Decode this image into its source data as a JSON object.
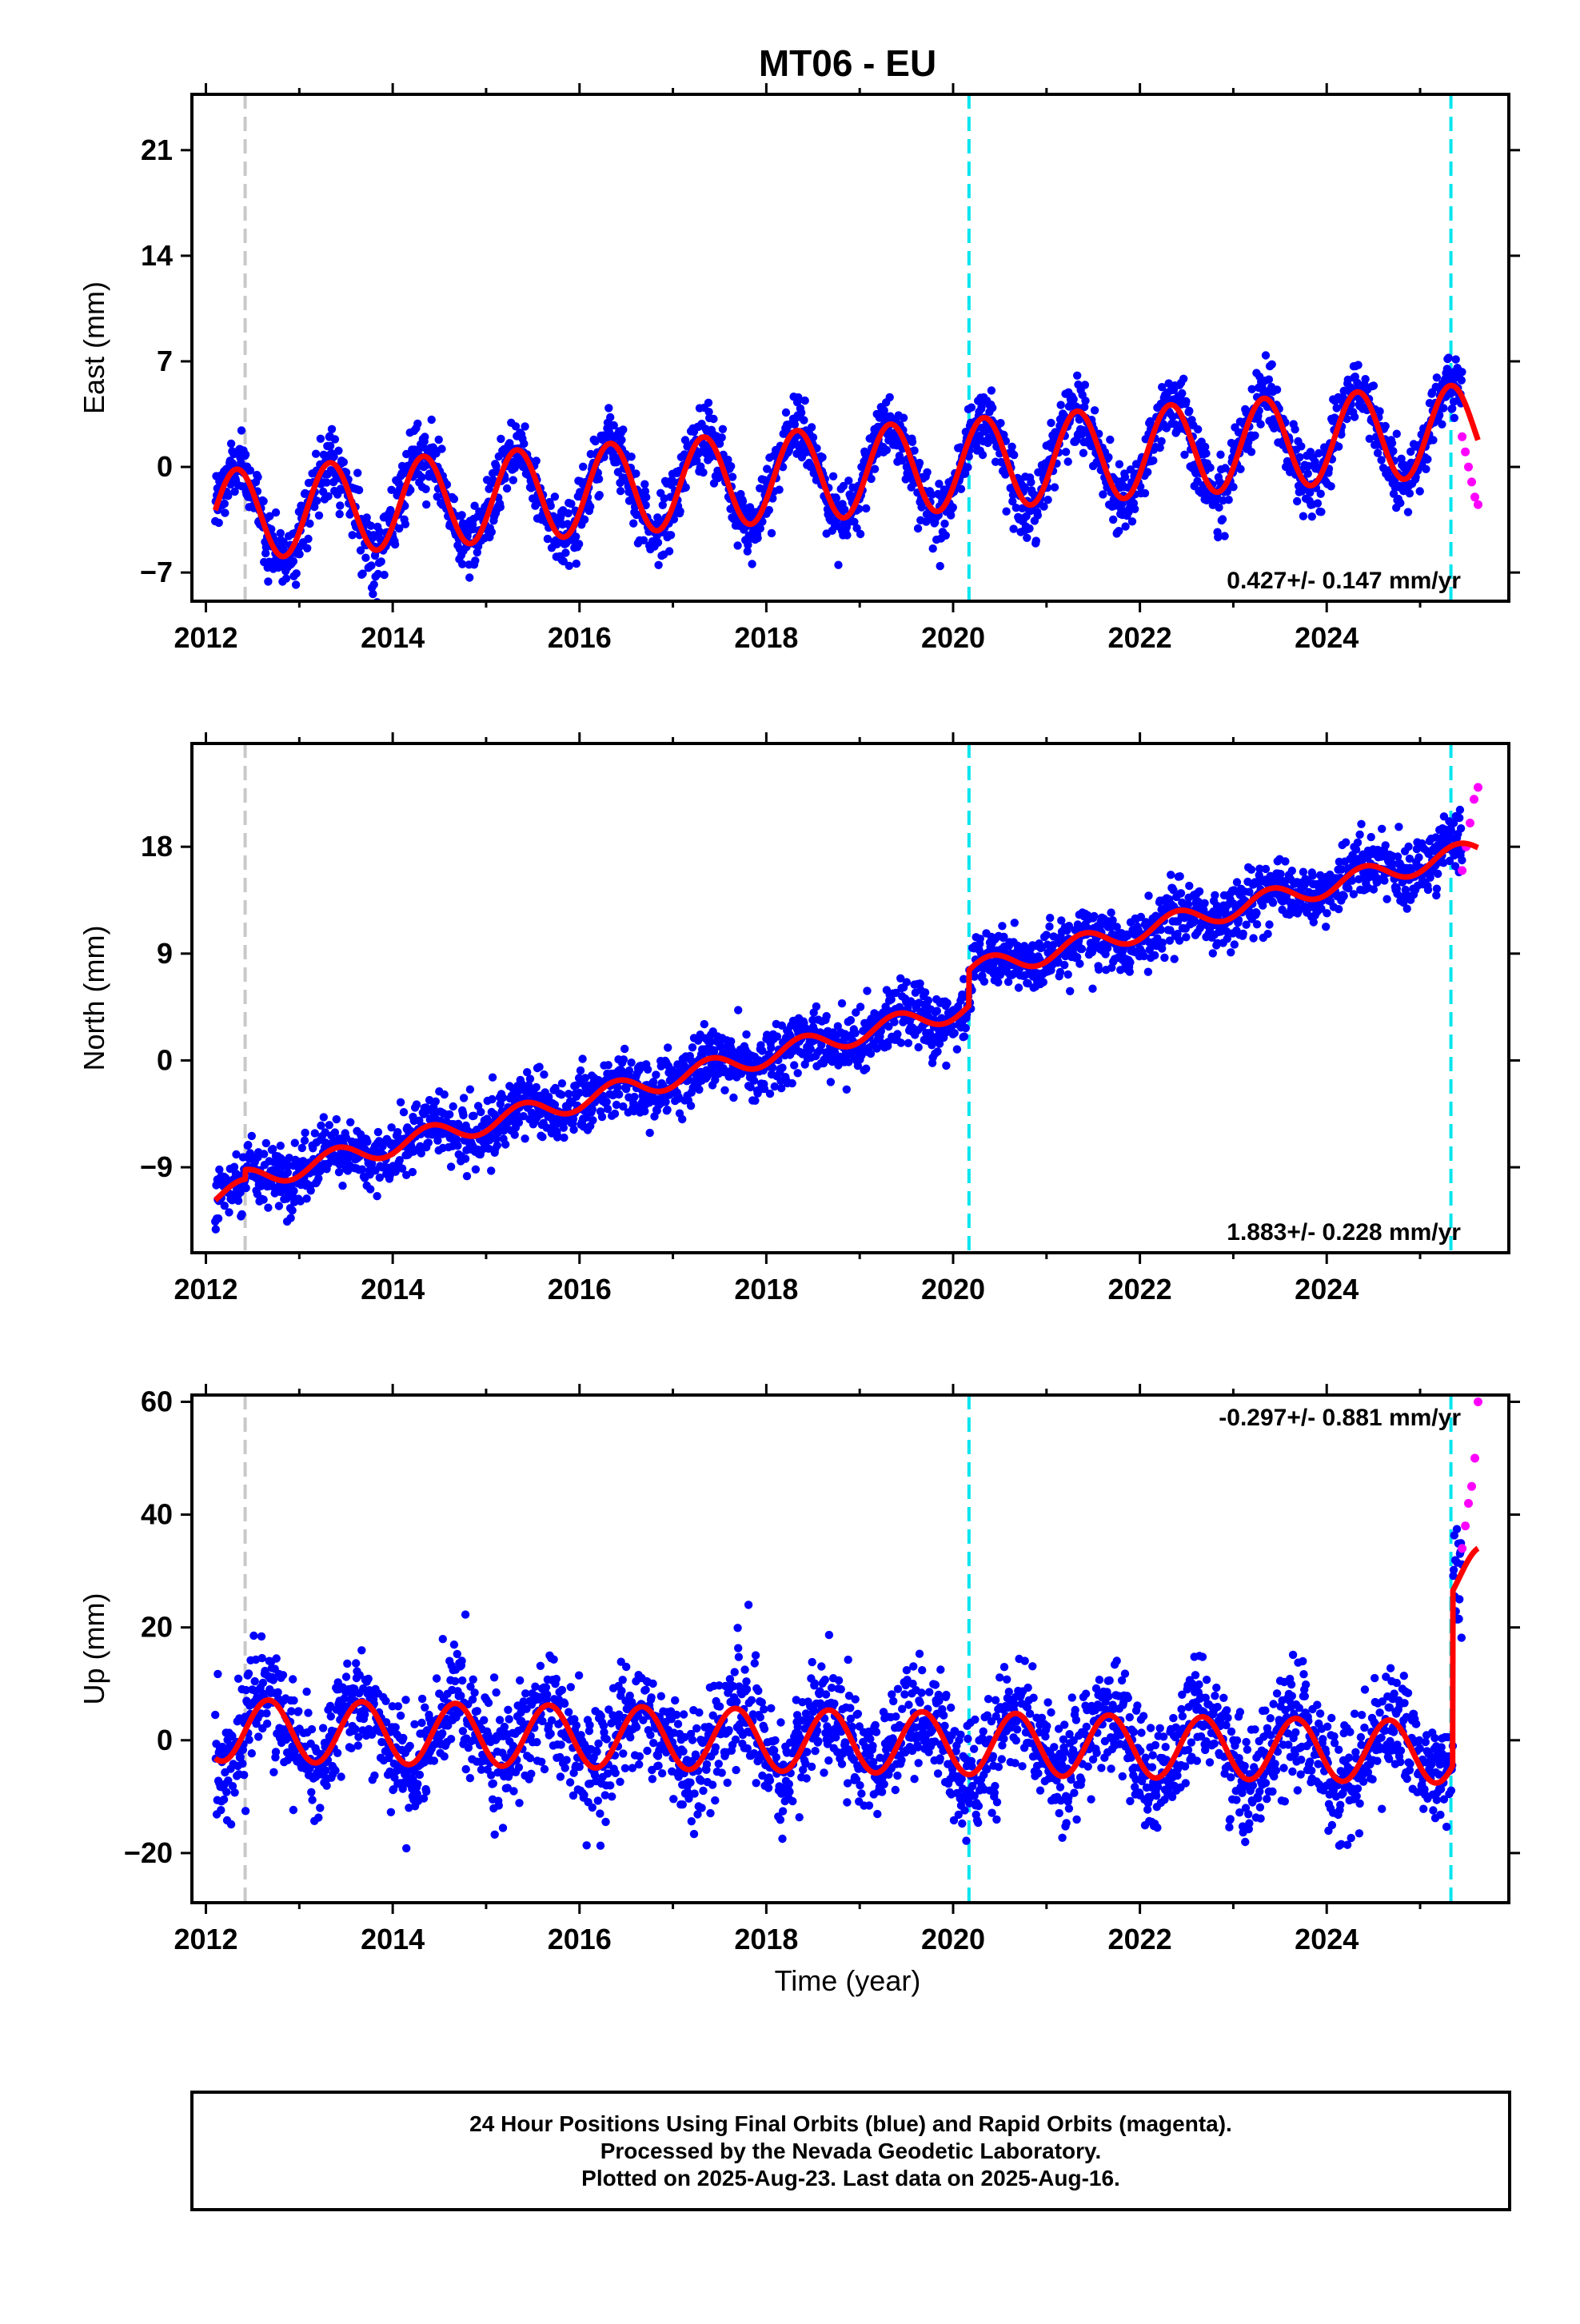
{
  "title": "MT06 - EU",
  "xlabel": "Time (year)",
  "colors": {
    "final": "#0000ff",
    "rapid": "#ff00ff",
    "model": "#ff0000",
    "steps_equipment": "#00e5ee",
    "steps_eq": "#c8c8c8"
  },
  "caption": {
    "line1": "24 Hour Positions Using Final Orbits (blue) and Rapid Orbits (magenta).",
    "line2": "Processed by the Nevada Geodetic Laboratory.",
    "line3": "Plotted on 2025-Aug-23. Last data on 2025-Aug-16."
  },
  "chart_data": [
    {
      "type": "scatter",
      "component": "east",
      "ylabel": "East (mm)",
      "xlim": [
        2011.85,
        2025.95
      ],
      "ylim": [
        -8.9,
        24.7
      ],
      "xticks": [
        2012,
        2014,
        2016,
        2018,
        2020,
        2022,
        2024
      ],
      "yticks": [
        -7,
        0,
        7,
        14,
        21
      ],
      "rate_label": "0.427+/- 0.147 mm/yr",
      "rate_position": "bottom-right",
      "vlines": [
        {
          "x": 2012.42,
          "color": "gray"
        },
        {
          "x": 2020.17,
          "color": "cyan"
        },
        {
          "x": 2025.33,
          "color": "cyan"
        }
      ],
      "model": {
        "offset": -3.25,
        "rate": 0.427,
        "amplitude": 3.0,
        "phase_peak": 0.33,
        "steps": []
      },
      "scatter_sigma": 1.1,
      "rapid": {
        "x_start": 2025.45,
        "x_end": 2025.62,
        "values": [
          2.0,
          1.0,
          0.0,
          -1.0,
          -2.0,
          -2.5
        ]
      }
    },
    {
      "type": "scatter",
      "component": "north",
      "ylabel": "North (mm)",
      "xlim": [
        2011.85,
        2025.95
      ],
      "ylim": [
        -16.2,
        26.7
      ],
      "xticks": [
        2012,
        2014,
        2016,
        2018,
        2020,
        2022,
        2024
      ],
      "yticks": [
        -9,
        0,
        9,
        18
      ],
      "rate_label": "1.883+/- 0.228 mm/yr",
      "rate_position": "bottom-right",
      "vlines": [
        {
          "x": 2012.42,
          "color": "gray"
        },
        {
          "x": 2020.17,
          "color": "cyan"
        },
        {
          "x": 2025.33,
          "color": "cyan"
        }
      ],
      "model": {
        "offset": -11.5,
        "rate": 1.883,
        "amplitude": 0.9,
        "phase_peak": 0.4,
        "steps": [
          {
            "x": 2012.42,
            "dy": 0.8
          },
          {
            "x": 2020.17,
            "dy": 3.0
          }
        ]
      },
      "scatter_sigma": 1.3,
      "rapid": {
        "x_start": 2025.45,
        "x_end": 2025.62,
        "values": [
          16.0,
          18.0,
          20.0,
          22.0,
          23.0
        ]
      }
    },
    {
      "type": "scatter",
      "component": "up",
      "ylabel": "Up (mm)",
      "xlim": [
        2011.85,
        2025.95
      ],
      "ylim": [
        -28.8,
        61.2
      ],
      "xticks": [
        2012,
        2014,
        2016,
        2018,
        2020,
        2022,
        2024
      ],
      "yticks": [
        -20,
        0,
        20,
        40,
        60
      ],
      "rate_label": "-0.297+/- 0.881 mm/yr",
      "rate_position": "top-right",
      "vlines": [
        {
          "x": 2012.42,
          "color": "gray"
        },
        {
          "x": 2020.17,
          "color": "cyan"
        },
        {
          "x": 2025.33,
          "color": "cyan"
        }
      ],
      "model": {
        "offset": 1.8,
        "rate": -0.297,
        "amplitude": 5.5,
        "phase_peak": 0.67,
        "steps": [
          {
            "x": 2025.35,
            "dy": 31.0
          }
        ]
      },
      "scatter_sigma": 5.0,
      "rapid": {
        "x_start": 2025.45,
        "x_end": 2025.62,
        "values": [
          34.0,
          38.0,
          42.0,
          45.0,
          50.0,
          60.0
        ]
      }
    }
  ]
}
